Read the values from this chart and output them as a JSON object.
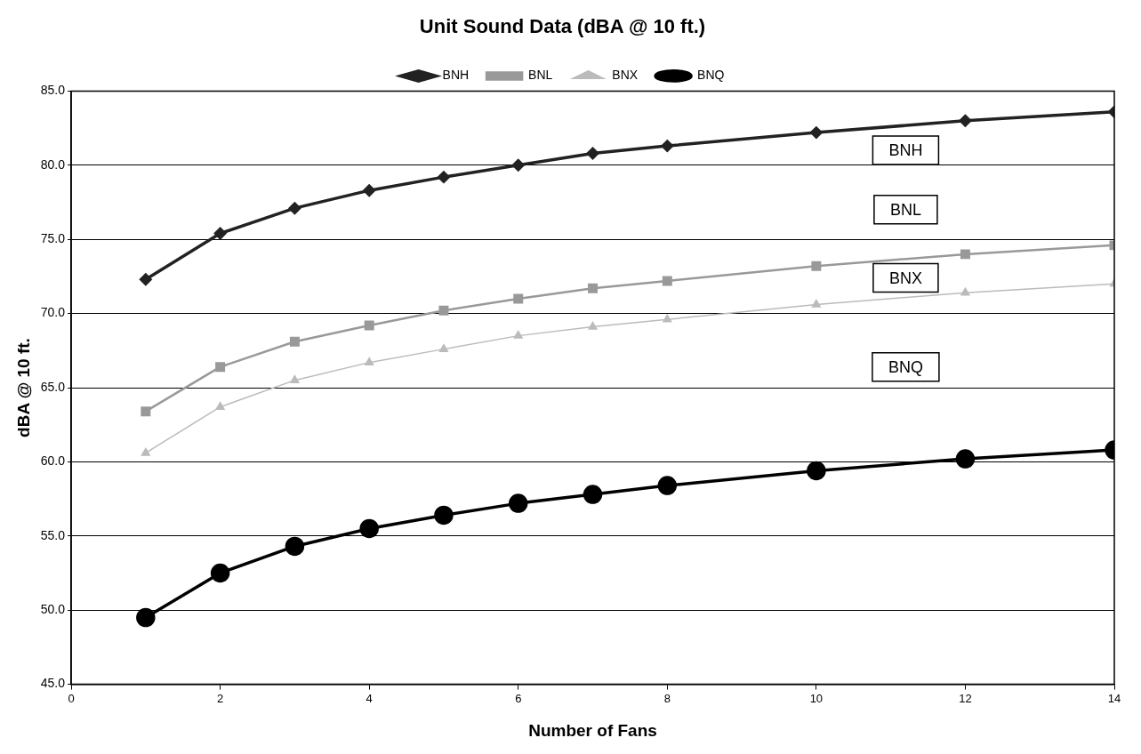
{
  "chart_data": {
    "type": "line",
    "title": "Unit Sound Data (dBA @ 10 ft.)",
    "xlabel": "Number of Fans",
    "ylabel": "dBA @ 10 ft.",
    "x": [
      1,
      2,
      3,
      4,
      5,
      6,
      7,
      8,
      10,
      12,
      14
    ],
    "series": [
      {
        "name": "BNH",
        "color": "#222222",
        "marker": "diamond",
        "values": [
          72.3,
          75.4,
          77.1,
          78.3,
          79.2,
          80.0,
          80.8,
          81.3,
          82.2,
          83.0,
          83.6
        ]
      },
      {
        "name": "BNL",
        "color": "#999999",
        "marker": "square",
        "values": [
          63.4,
          66.4,
          68.1,
          69.2,
          70.2,
          71.0,
          71.7,
          72.2,
          73.2,
          74.0,
          74.6
        ]
      },
      {
        "name": "BNX",
        "color": "#bbbbbb",
        "marker": "triangle",
        "values": [
          60.6,
          63.7,
          65.5,
          66.7,
          67.6,
          68.5,
          69.1,
          69.6,
          70.6,
          71.4,
          72.0
        ]
      },
      {
        "name": "BNQ",
        "color": "#000000",
        "marker": "circle",
        "values": [
          49.5,
          52.5,
          54.3,
          55.5,
          56.4,
          57.2,
          57.8,
          58.4,
          59.4,
          60.2,
          60.8
        ]
      }
    ],
    "annotations": [
      "BNH",
      "BNL",
      "BNX",
      "BNQ"
    ],
    "xlim": [
      0,
      14
    ],
    "xticks": [
      0,
      2,
      4,
      6,
      8,
      10,
      12,
      14
    ],
    "ylim": [
      45,
      85
    ],
    "yticks": [
      {
        "value": 45,
        "label": "45.0"
      },
      {
        "value": 50,
        "label": "50.0"
      },
      {
        "value": 55,
        "label": "55.0"
      },
      {
        "value": 60,
        "label": "60.0"
      },
      {
        "value": 65,
        "label": "65.0"
      },
      {
        "value": 70,
        "label": "70.0"
      },
      {
        "value": 75,
        "label": "75.0"
      },
      {
        "value": 80,
        "label": "80.0"
      },
      {
        "value": 85,
        "label": "85.0"
      }
    ],
    "grid": "y",
    "legend": "top"
  }
}
